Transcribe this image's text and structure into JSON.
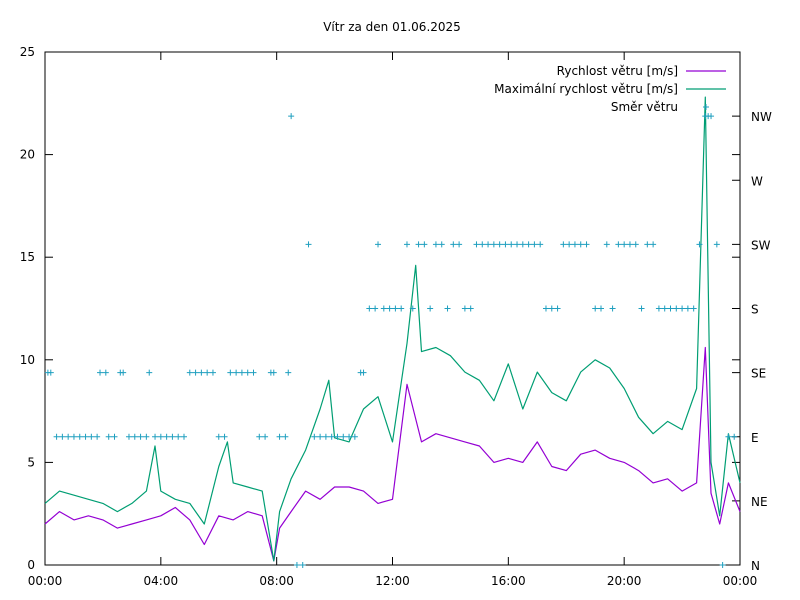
{
  "chart_data": {
    "type": "line",
    "title": "Vítr za den 01.06.2025",
    "x_ticks": [
      "00:00",
      "04:00",
      "08:00",
      "12:00",
      "16:00",
      "20:00",
      "00:00"
    ],
    "x_range_hours": [
      0,
      24
    ],
    "ylim": [
      0,
      25
    ],
    "y_ticks": [
      0,
      5,
      10,
      15,
      20,
      25
    ],
    "y2_ticks": [
      "N",
      "NE",
      "E",
      "SE",
      "S",
      "SW",
      "W",
      "NW"
    ],
    "grid": false,
    "legend_position": "top-right",
    "series": [
      {
        "name": "Rychlost větru [m/s]",
        "color": "#9400d3",
        "x_hours": [
          0,
          0.5,
          1,
          1.5,
          2,
          2.5,
          3,
          3.5,
          4,
          4.5,
          5,
          5.5,
          6,
          6.5,
          7,
          7.5,
          7.9,
          8.1,
          8.5,
          9,
          9.5,
          10,
          10.5,
          11,
          11.5,
          12,
          12.5,
          13,
          13.5,
          14,
          14.5,
          15,
          15.5,
          16,
          16.5,
          17,
          17.5,
          18,
          18.5,
          19,
          19.5,
          20,
          20.5,
          21,
          21.5,
          22,
          22.5,
          22.8,
          23,
          23.3,
          23.6,
          24
        ],
        "values": [
          2.0,
          2.6,
          2.2,
          2.4,
          2.2,
          1.8,
          2.0,
          2.2,
          2.4,
          2.8,
          2.2,
          1.0,
          2.4,
          2.2,
          2.6,
          2.4,
          0.2,
          1.8,
          2.6,
          3.6,
          3.2,
          3.8,
          3.8,
          3.6,
          3.0,
          3.2,
          8.8,
          6.0,
          6.4,
          6.2,
          6.0,
          5.8,
          5.0,
          5.2,
          5.0,
          6.0,
          4.8,
          4.6,
          5.4,
          5.6,
          5.2,
          5.0,
          4.6,
          4.0,
          4.2,
          3.6,
          4.0,
          10.6,
          3.5,
          2.0,
          4.0,
          2.6
        ]
      },
      {
        "name": "Maximální rychlost větru [m/s]",
        "color": "#009e73",
        "x_hours": [
          0,
          0.5,
          1,
          1.5,
          2,
          2.5,
          3,
          3.5,
          3.8,
          4,
          4.5,
          5,
          5.5,
          6,
          6.3,
          6.5,
          7,
          7.5,
          7.9,
          8.1,
          8.5,
          9,
          9.5,
          9.8,
          10,
          10.5,
          11,
          11.5,
          12,
          12.5,
          12.8,
          13,
          13.5,
          14,
          14.5,
          15,
          15.5,
          16,
          16.5,
          17,
          17.5,
          18,
          18.5,
          19,
          19.5,
          20,
          20.5,
          21,
          21.5,
          22,
          22.5,
          22.8,
          23,
          23.3,
          23.6,
          24
        ],
        "values": [
          3.0,
          3.6,
          3.4,
          3.2,
          3.0,
          2.6,
          3.0,
          3.6,
          5.8,
          3.6,
          3.2,
          3.0,
          2.0,
          4.8,
          6.0,
          4.0,
          3.8,
          3.6,
          0.2,
          2.6,
          4.2,
          5.6,
          7.6,
          9.0,
          6.2,
          6.0,
          7.6,
          8.2,
          6.0,
          10.8,
          14.6,
          10.4,
          10.6,
          10.2,
          9.4,
          9.0,
          8.0,
          9.8,
          7.6,
          9.4,
          8.4,
          8.0,
          9.4,
          10.0,
          9.6,
          8.6,
          7.2,
          6.4,
          7.0,
          6.6,
          8.6,
          22.8,
          5.0,
          2.4,
          6.4,
          4.0
        ]
      }
    ],
    "direction_series": {
      "name": "Směr větru",
      "color": "#1f9fbf",
      "marker": "+",
      "points": [
        {
          "x": 0.1,
          "dir": "SE"
        },
        {
          "x": 0.2,
          "dir": "SE"
        },
        {
          "x": 0.4,
          "dir": "E"
        },
        {
          "x": 0.6,
          "dir": "E"
        },
        {
          "x": 0.8,
          "dir": "E"
        },
        {
          "x": 1.0,
          "dir": "E"
        },
        {
          "x": 1.2,
          "dir": "E"
        },
        {
          "x": 1.4,
          "dir": "E"
        },
        {
          "x": 1.6,
          "dir": "E"
        },
        {
          "x": 1.8,
          "dir": "E"
        },
        {
          "x": 1.9,
          "dir": "SE"
        },
        {
          "x": 2.1,
          "dir": "SE"
        },
        {
          "x": 2.2,
          "dir": "E"
        },
        {
          "x": 2.4,
          "dir": "E"
        },
        {
          "x": 2.6,
          "dir": "SE"
        },
        {
          "x": 2.7,
          "dir": "SE"
        },
        {
          "x": 2.9,
          "dir": "E"
        },
        {
          "x": 3.1,
          "dir": "E"
        },
        {
          "x": 3.3,
          "dir": "E"
        },
        {
          "x": 3.5,
          "dir": "E"
        },
        {
          "x": 3.6,
          "dir": "SE"
        },
        {
          "x": 3.8,
          "dir": "E"
        },
        {
          "x": 4.0,
          "dir": "E"
        },
        {
          "x": 4.2,
          "dir": "E"
        },
        {
          "x": 4.4,
          "dir": "E"
        },
        {
          "x": 4.6,
          "dir": "E"
        },
        {
          "x": 4.8,
          "dir": "E"
        },
        {
          "x": 5.0,
          "dir": "SE"
        },
        {
          "x": 5.2,
          "dir": "SE"
        },
        {
          "x": 5.4,
          "dir": "SE"
        },
        {
          "x": 5.6,
          "dir": "SE"
        },
        {
          "x": 5.8,
          "dir": "SE"
        },
        {
          "x": 6.0,
          "dir": "E"
        },
        {
          "x": 6.2,
          "dir": "E"
        },
        {
          "x": 6.4,
          "dir": "SE"
        },
        {
          "x": 6.6,
          "dir": "SE"
        },
        {
          "x": 6.8,
          "dir": "SE"
        },
        {
          "x": 7.0,
          "dir": "SE"
        },
        {
          "x": 7.2,
          "dir": "SE"
        },
        {
          "x": 7.4,
          "dir": "E"
        },
        {
          "x": 7.6,
          "dir": "E"
        },
        {
          "x": 7.8,
          "dir": "SE"
        },
        {
          "x": 7.9,
          "dir": "SE"
        },
        {
          "x": 8.1,
          "dir": "E"
        },
        {
          "x": 8.3,
          "dir": "E"
        },
        {
          "x": 8.4,
          "dir": "SE"
        },
        {
          "x": 8.5,
          "dir": "NW"
        },
        {
          "x": 8.7,
          "dir": "N"
        },
        {
          "x": 8.9,
          "dir": "N"
        },
        {
          "x": 9.1,
          "dir": "SW"
        },
        {
          "x": 9.3,
          "dir": "E"
        },
        {
          "x": 9.5,
          "dir": "E"
        },
        {
          "x": 9.7,
          "dir": "E"
        },
        {
          "x": 9.9,
          "dir": "E"
        },
        {
          "x": 10.1,
          "dir": "E"
        },
        {
          "x": 10.3,
          "dir": "E"
        },
        {
          "x": 10.5,
          "dir": "E"
        },
        {
          "x": 10.7,
          "dir": "E"
        },
        {
          "x": 10.9,
          "dir": "SE"
        },
        {
          "x": 11.0,
          "dir": "SE"
        },
        {
          "x": 11.2,
          "dir": "S"
        },
        {
          "x": 11.4,
          "dir": "S"
        },
        {
          "x": 11.5,
          "dir": "SW"
        },
        {
          "x": 11.7,
          "dir": "S"
        },
        {
          "x": 11.9,
          "dir": "S"
        },
        {
          "x": 12.1,
          "dir": "S"
        },
        {
          "x": 12.3,
          "dir": "S"
        },
        {
          "x": 12.5,
          "dir": "SW"
        },
        {
          "x": 12.7,
          "dir": "S"
        },
        {
          "x": 12.9,
          "dir": "SW"
        },
        {
          "x": 13.1,
          "dir": "SW"
        },
        {
          "x": 13.3,
          "dir": "S"
        },
        {
          "x": 13.5,
          "dir": "SW"
        },
        {
          "x": 13.7,
          "dir": "SW"
        },
        {
          "x": 13.9,
          "dir": "S"
        },
        {
          "x": 14.1,
          "dir": "SW"
        },
        {
          "x": 14.3,
          "dir": "SW"
        },
        {
          "x": 14.5,
          "dir": "S"
        },
        {
          "x": 14.7,
          "dir": "S"
        },
        {
          "x": 14.9,
          "dir": "SW"
        },
        {
          "x": 15.1,
          "dir": "SW"
        },
        {
          "x": 15.3,
          "dir": "SW"
        },
        {
          "x": 15.5,
          "dir": "SW"
        },
        {
          "x": 15.7,
          "dir": "SW"
        },
        {
          "x": 15.9,
          "dir": "SW"
        },
        {
          "x": 16.1,
          "dir": "SW"
        },
        {
          "x": 16.3,
          "dir": "SW"
        },
        {
          "x": 16.5,
          "dir": "SW"
        },
        {
          "x": 16.7,
          "dir": "SW"
        },
        {
          "x": 16.9,
          "dir": "SW"
        },
        {
          "x": 17.1,
          "dir": "SW"
        },
        {
          "x": 17.3,
          "dir": "S"
        },
        {
          "x": 17.5,
          "dir": "S"
        },
        {
          "x": 17.7,
          "dir": "S"
        },
        {
          "x": 17.9,
          "dir": "SW"
        },
        {
          "x": 18.1,
          "dir": "SW"
        },
        {
          "x": 18.3,
          "dir": "SW"
        },
        {
          "x": 18.5,
          "dir": "SW"
        },
        {
          "x": 18.7,
          "dir": "SW"
        },
        {
          "x": 19.0,
          "dir": "S"
        },
        {
          "x": 19.2,
          "dir": "S"
        },
        {
          "x": 19.4,
          "dir": "SW"
        },
        {
          "x": 19.6,
          "dir": "S"
        },
        {
          "x": 19.8,
          "dir": "SW"
        },
        {
          "x": 20.0,
          "dir": "SW"
        },
        {
          "x": 20.2,
          "dir": "SW"
        },
        {
          "x": 20.4,
          "dir": "SW"
        },
        {
          "x": 20.6,
          "dir": "S"
        },
        {
          "x": 20.8,
          "dir": "SW"
        },
        {
          "x": 21.0,
          "dir": "SW"
        },
        {
          "x": 21.2,
          "dir": "S"
        },
        {
          "x": 21.4,
          "dir": "S"
        },
        {
          "x": 21.6,
          "dir": "S"
        },
        {
          "x": 21.8,
          "dir": "S"
        },
        {
          "x": 22.0,
          "dir": "S"
        },
        {
          "x": 22.2,
          "dir": "S"
        },
        {
          "x": 22.4,
          "dir": "S"
        },
        {
          "x": 22.6,
          "dir": "SW"
        },
        {
          "x": 22.8,
          "dir": "NW"
        },
        {
          "x": 22.9,
          "dir": "NW"
        },
        {
          "x": 23.0,
          "dir": "NW"
        },
        {
          "x": 23.2,
          "dir": "SW"
        },
        {
          "x": 23.4,
          "dir": "N"
        },
        {
          "x": 23.6,
          "dir": "E"
        },
        {
          "x": 23.8,
          "dir": "E"
        }
      ]
    }
  }
}
